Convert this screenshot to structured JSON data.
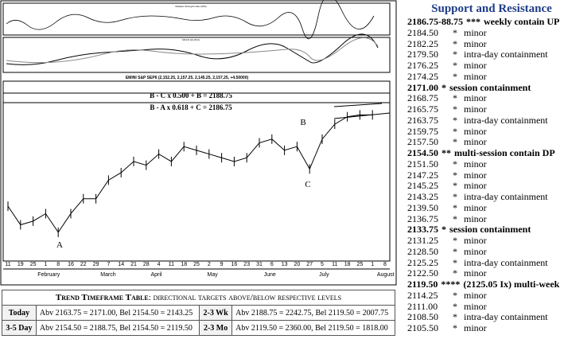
{
  "chart_data": {
    "type": "line",
    "title": "EMINI S&P SEP6 (2,152.25, 2,157.25, 2,145.25, 2,157.25, +4.50000)",
    "categories": [
      "11",
      "19",
      "25",
      "1",
      "8",
      "16",
      "22",
      "29",
      "7",
      "14",
      "21",
      "28",
      "4",
      "11",
      "18",
      "25",
      "2",
      "9",
      "16",
      "23",
      "31",
      "6",
      "13",
      "20",
      "27",
      "5",
      "11",
      "18",
      "25",
      "1",
      "8"
    ],
    "months": [
      "February",
      "March",
      "April",
      "May",
      "June",
      "July",
      "August"
    ],
    "values": [
      1920,
      1870,
      1880,
      1900,
      1850,
      1900,
      1940,
      1940,
      1990,
      2010,
      2040,
      2030,
      2060,
      2040,
      2080,
      2070,
      2060,
      2050,
      2040,
      2050,
      2090,
      2100,
      2070,
      2080,
      2020,
      2100,
      2140,
      2160,
      2165,
      2165,
      null
    ],
    "color": "#000000",
    "ylim": [
      1790,
      2200
    ],
    "annotations": [
      "A",
      "B",
      "C"
    ],
    "formulas": [
      "B - C  x  0.500 + B = 2188.75",
      "B - A  x  0.618 + C = 2186.75"
    ],
    "panels": [
      "Relative Strength Index (RSI)",
      "MACD (12,26,9)"
    ]
  },
  "sidebar": {
    "title": "Support and Resistance",
    "levels": [
      {
        "level": "2186.75-88.75",
        "stars": "***",
        "note": "weekly contain UP",
        "bold": true
      },
      {
        "level": "2184.50",
        "stars": "*",
        "note": "minor",
        "bold": false
      },
      {
        "level": "2182.25",
        "stars": "*",
        "note": "minor",
        "bold": false
      },
      {
        "level": "2179.50",
        "stars": "*",
        "note": "intra-day containment",
        "bold": false
      },
      {
        "level": "2176.25",
        "stars": "*",
        "note": "minor",
        "bold": false
      },
      {
        "level": "2174.25",
        "stars": "*",
        "note": "minor",
        "bold": false
      },
      {
        "level": "2171.00",
        "stars": "*",
        "note": "session containment",
        "bold": true
      },
      {
        "level": "2168.75",
        "stars": "*",
        "note": "minor",
        "bold": false
      },
      {
        "level": "2165.75",
        "stars": "*",
        "note": "minor",
        "bold": false
      },
      {
        "level": "2163.75",
        "stars": "*",
        "note": "intra-day containment",
        "bold": false
      },
      {
        "level": "2159.75",
        "stars": "*",
        "note": "minor",
        "bold": false
      },
      {
        "level": "2157.50",
        "stars": "*",
        "note": "minor",
        "bold": false
      },
      {
        "level": "2154.50",
        "stars": "**",
        "note": "multi-session contain DP",
        "bold": true
      },
      {
        "level": "2151.50",
        "stars": "*",
        "note": "minor",
        "bold": false
      },
      {
        "level": "2147.25",
        "stars": "*",
        "note": "minor",
        "bold": false
      },
      {
        "level": "2145.25",
        "stars": "*",
        "note": "minor",
        "bold": false
      },
      {
        "level": "2143.25",
        "stars": "*",
        "note": "intra-day containment",
        "bold": false
      },
      {
        "level": "2139.50",
        "stars": "*",
        "note": "minor",
        "bold": false
      },
      {
        "level": "2136.75",
        "stars": "*",
        "note": "minor",
        "bold": false
      },
      {
        "level": "2133.75",
        "stars": "*",
        "note": "session containment",
        "bold": true
      },
      {
        "level": "2131.25",
        "stars": "*",
        "note": "minor",
        "bold": false
      },
      {
        "level": "2128.50",
        "stars": "*",
        "note": "minor",
        "bold": false
      },
      {
        "level": "2125.25",
        "stars": "*",
        "note": "intra-day containment",
        "bold": false
      },
      {
        "level": "2122.50",
        "stars": "*",
        "note": "minor",
        "bold": false
      },
      {
        "level": "2119.50",
        "stars": "****",
        "note": "(2125.05 Ix) multi-week",
        "bold": true
      },
      {
        "level": "2114.25",
        "stars": "*",
        "note": "minor",
        "bold": false
      },
      {
        "level": "2111.00",
        "stars": "*",
        "note": "minor",
        "bold": false
      },
      {
        "level": "2108.50",
        "stars": "*",
        "note": "intra-day containment",
        "bold": false
      },
      {
        "level": "2105.50",
        "stars": "*",
        "note": "minor",
        "bold": false
      }
    ]
  },
  "table": {
    "title_bold": "Trend Timeframe Table",
    "title_rest": ": directional targets above/below respective levels",
    "rows": [
      [
        "Today",
        "Abv 2163.75 = 2171.00, Bel 2154.50 = 2143.25",
        "2-3 Wk",
        "Abv 2188.75 = 2242.75, Bel 2119.50 = 2007.75"
      ],
      [
        "3-5 Day",
        "Abv 2154.50 = 2188.75, Bel 2154.50 = 2119.50",
        "2-3 Mo",
        "Abv 2119.50 = 2360.00, Bel 2119.50 = 1818.00"
      ]
    ]
  }
}
